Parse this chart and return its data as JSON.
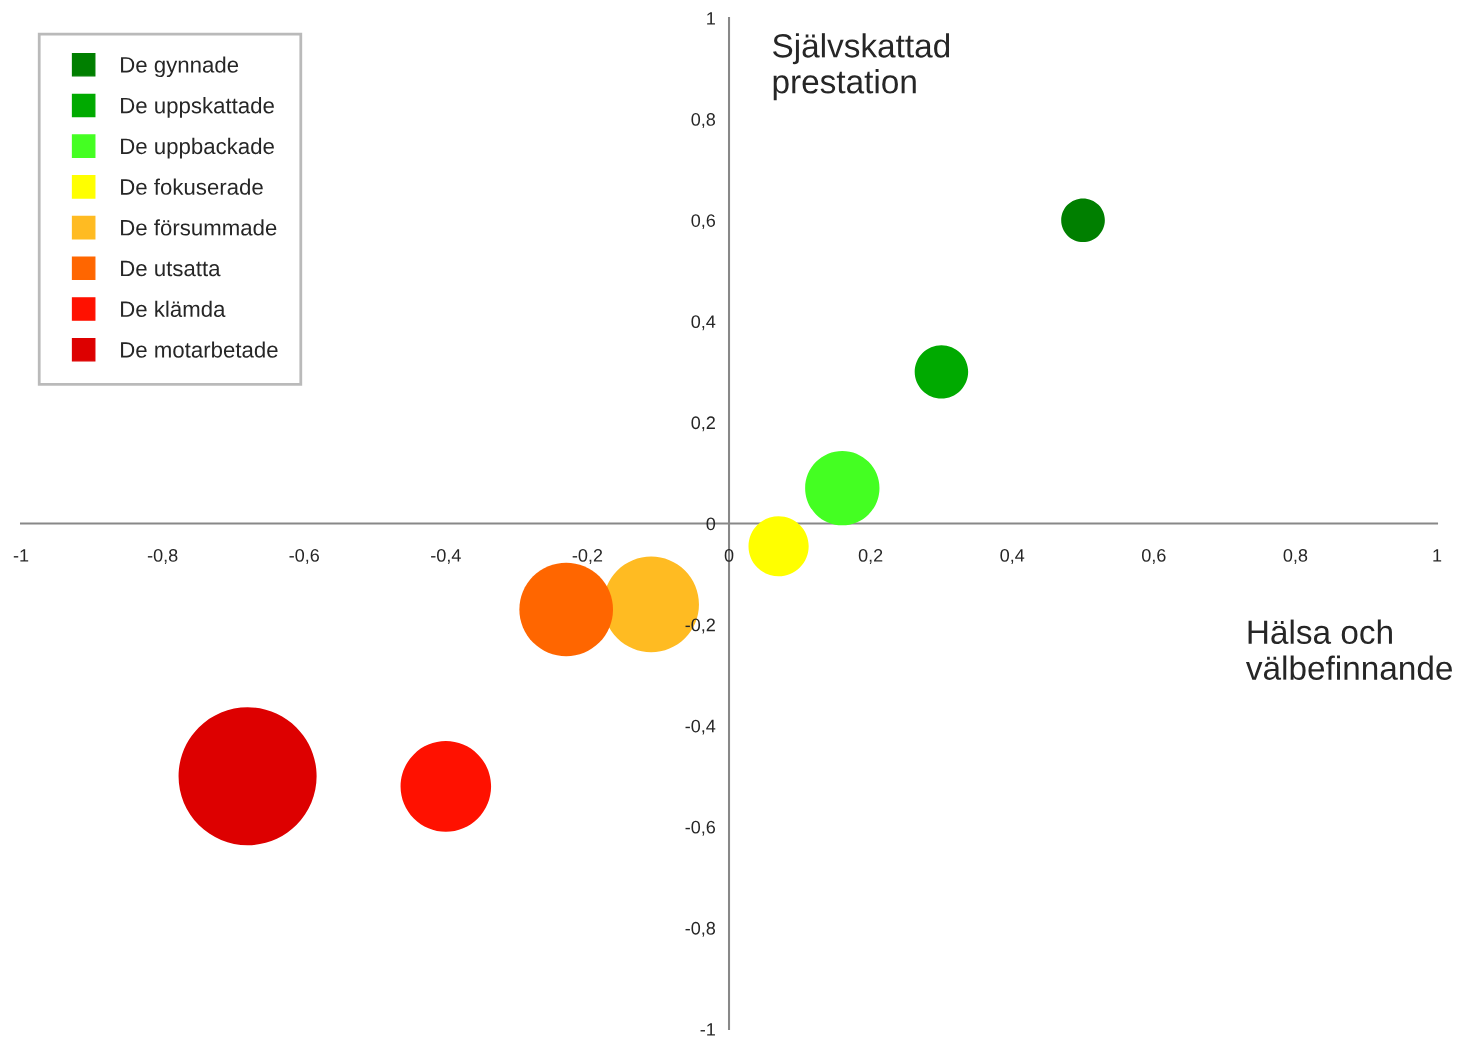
{
  "chart_data": {
    "type": "bubble",
    "xlabel": "Hälsa och välbefinnande",
    "ylabel": "Självskattad prestation",
    "xlim": [
      -1,
      1
    ],
    "ylim": [
      -1,
      1
    ],
    "xticks": [
      -1,
      {
        "value": -0.8,
        "label": "-0,8"
      },
      {
        "value": -0.6,
        "label": "-0,6"
      },
      {
        "value": -0.4,
        "label": "-0,4"
      },
      {
        "value": -0.2,
        "label": "-0,2"
      },
      0,
      {
        "value": 0.2,
        "label": "0,2"
      },
      {
        "value": 0.4,
        "label": "0,4"
      },
      {
        "value": 0.6,
        "label": "0,6"
      },
      {
        "value": 0.8,
        "label": "0,8"
      },
      1
    ],
    "yticks": [
      -1,
      {
        "value": -0.8,
        "label": "-0,8"
      },
      {
        "value": -0.6,
        "label": "-0,6"
      },
      {
        "value": -0.4,
        "label": "-0,4"
      },
      {
        "value": -0.2,
        "label": "-0,2"
      },
      0,
      {
        "value": 0.2,
        "label": "0,2"
      },
      {
        "value": 0.4,
        "label": "0,4"
      },
      {
        "value": 0.6,
        "label": "0,6"
      },
      {
        "value": 0.8,
        "label": "0,8"
      },
      1
    ],
    "grid": false,
    "legend": "top left",
    "marker": "circle",
    "series": [
      {
        "name": "De gynnade",
        "color": "#007f00",
        "x": [
          0.5
        ],
        "values": [
          0.6
        ],
        "sizes": [
          0.1
        ]
      },
      {
        "name": "De uppskattade",
        "color": "#00aa00",
        "x": [
          0.3
        ],
        "values": [
          0.3
        ],
        "sizes": [
          0.15
        ]
      },
      {
        "name": "De uppbackade",
        "color": "#44ff22",
        "x": [
          0.16
        ],
        "values": [
          0.07
        ],
        "sizes": [
          0.29
        ]
      },
      {
        "name": "De fokuserade",
        "color": "#ffff00",
        "x": [
          0.07
        ],
        "values": [
          -0.045
        ],
        "sizes": [
          0.19
        ]
      },
      {
        "name": "De försummade",
        "color": "#ffbb22",
        "x": [
          -0.11
        ],
        "values": [
          -0.16
        ],
        "sizes": [
          0.48
        ]
      },
      {
        "name": "De utsatta",
        "color": "#ff6600",
        "x": [
          -0.23
        ],
        "values": [
          -0.17
        ],
        "sizes": [
          0.46
        ]
      },
      {
        "name": "De klämda",
        "color": "#ff1100",
        "x": [
          -0.4
        ],
        "values": [
          -0.52
        ],
        "sizes": [
          0.43
        ]
      },
      {
        "name": "De motarbetade",
        "color": "#dd0000",
        "x": [
          -0.68
        ],
        "values": [
          -0.5
        ],
        "sizes": [
          1
        ]
      }
    ]
  }
}
